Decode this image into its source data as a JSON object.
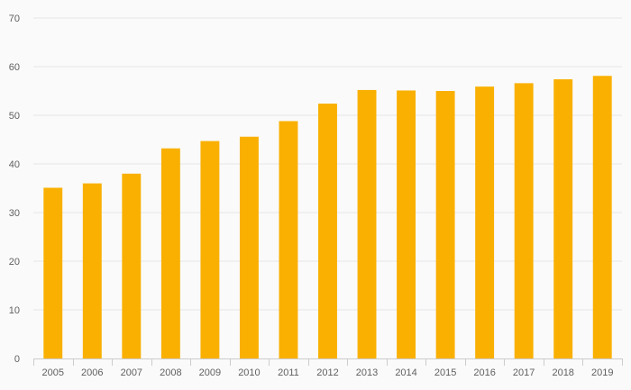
{
  "chart_data": {
    "type": "bar",
    "categories": [
      "2005",
      "2006",
      "2007",
      "2008",
      "2009",
      "2010",
      "2011",
      "2012",
      "2013",
      "2014",
      "2015",
      "2016",
      "2017",
      "2018",
      "2019"
    ],
    "values": [
      35.1,
      36.0,
      38.0,
      43.2,
      44.7,
      45.6,
      48.8,
      52.4,
      55.2,
      55.1,
      55.0,
      55.9,
      56.6,
      57.4,
      58.1
    ],
    "ylim": [
      0,
      70
    ],
    "yticks": [
      0,
      10,
      20,
      30,
      40,
      50,
      60,
      70
    ],
    "grid": true,
    "legend": "none",
    "colors": {
      "bar": "#f9b000",
      "background": "#fafafa"
    }
  }
}
